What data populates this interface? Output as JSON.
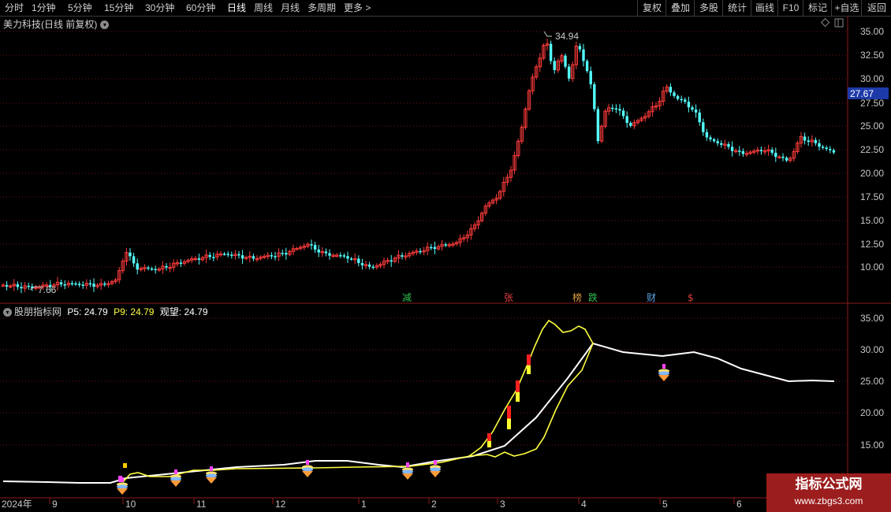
{
  "toolbar": {
    "periods": [
      "分时",
      "1分钟",
      "5分钟",
      "15分钟",
      "30分钟",
      "60分钟",
      "日线",
      "周线",
      "月线",
      "多周期",
      "更多 >"
    ],
    "active_period": "日线",
    "right_buttons": [
      "复权",
      "叠加",
      "多股",
      "统计",
      "画线",
      "F10",
      "标记",
      "+自选",
      "返回"
    ]
  },
  "main_pane": {
    "stock_title": "美力科技(日线 前复权)",
    "price_axis": [
      "35.00",
      "32.50",
      "30.00",
      "27.50",
      "25.00",
      "22.50",
      "20.00",
      "17.50",
      "15.00",
      "12.50",
      "10.00"
    ],
    "current_price_tag": "27.67",
    "high_label": "34.94",
    "low_label": "7.66",
    "event_markers": [
      {
        "text": "减",
        "color": "#2fbf4f"
      },
      {
        "text": "张",
        "color": "#e04040"
      },
      {
        "text": "榜",
        "color": "#e0a040"
      },
      {
        "text": "跌",
        "color": "#2fbf4f"
      },
      {
        "text": "财",
        "color": "#5aa0e0"
      },
      {
        "text": "$",
        "color": "#e04040"
      }
    ]
  },
  "indicator_pane": {
    "name": "股朋指标网",
    "p5_label": "P5: 24.79",
    "p9_label": "P9: 24.79",
    "watch_label": "观望: 24.79",
    "value_axis": [
      "35.00",
      "30.00",
      "25.00",
      "20.00",
      "15.00"
    ]
  },
  "time_axis": {
    "labels": [
      "2024年",
      "9",
      "10",
      "11",
      "12",
      "1",
      "2",
      "3",
      "4",
      "5",
      "6"
    ]
  },
  "watermark": {
    "line1": "指标公式网",
    "line2": "www.zbgs3.com"
  },
  "colors": {
    "up": "#ff3b3b",
    "down": "#54ffff",
    "white_line": "#ffffff",
    "yellow_line": "#ffff40",
    "grid": "#8b1a1a"
  }
}
